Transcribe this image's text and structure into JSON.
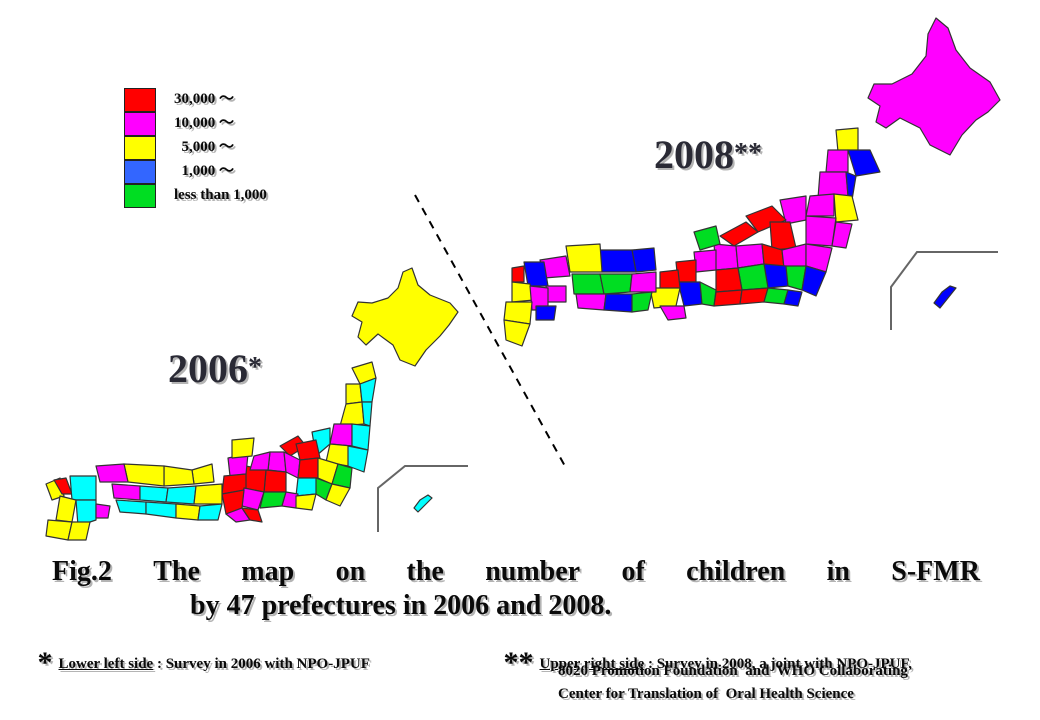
{
  "legend": {
    "items": [
      {
        "label": "30,000 〜",
        "color": "#ff0000"
      },
      {
        "label": "10,000 〜",
        "color": "#ff00ff"
      },
      {
        "label": "  5,000 〜",
        "color": "#ffff00"
      },
      {
        "label": "  1,000 〜",
        "color": "#3366ff"
      },
      {
        "label": "less than 1,000",
        "color": "#00dd22"
      }
    ]
  },
  "maps": {
    "year_2006": {
      "year": "2006",
      "mark": "*"
    },
    "year_2008": {
      "year": "2008",
      "mark": "**"
    },
    "palette_2006": [
      "#ffff00",
      "#00ffff",
      "#ff00ff",
      "#ff0000",
      "#00dd22"
    ],
    "palette_2008": [
      "#ff00ff",
      "#0000ff",
      "#ff0000",
      "#00dd22",
      "#ffff00"
    ]
  },
  "caption": {
    "title_words": [
      "Fig.2",
      "The",
      "map",
      "on",
      "the",
      "number",
      "of",
      "children",
      "in",
      "S-FMR"
    ],
    "title_line2": "by 47 prefectures in 2006 and 2008.",
    "note_2006": {
      "mark": "*",
      "underlined": "Lower left side",
      "rest": " : Survey in 2006 with NPO-JPUF"
    },
    "note_2008": {
      "mark": "**",
      "underlined": "Upper right side",
      "rest": " : Survey in 2008, a joint with NPO-JPUF,",
      "line2": "8020 Promotion Foundation  and  WHO Collaborating",
      "line3": "Center for Translation of  Oral Health Science"
    }
  }
}
